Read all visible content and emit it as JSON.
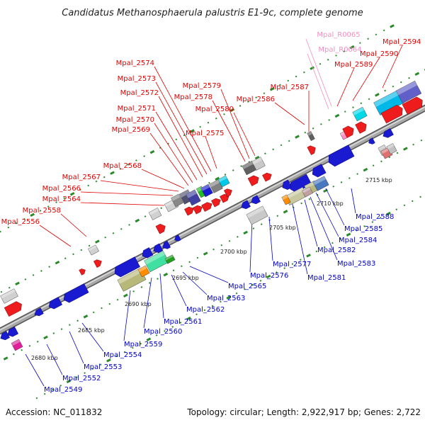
{
  "title": "Candidatus Methanosphaerula palustris E1-9c, complete genome",
  "footer": {
    "accession": "Accession: NC_011832",
    "topology": "Topology: circular; Length: 2,922,917 bp; Genes: 2,722"
  },
  "colors": {
    "forward_label": "#e00000",
    "reverse_label": "#0000c8",
    "rna_label": "#f090c0",
    "backbone": "#9a9a9a",
    "ticks": "#2a8a2a"
  },
  "scale_labels": [
    "2680 kbp",
    "2685 kbp",
    "2690 kbp",
    "2695 kbp",
    "2700 kbp",
    "2705 kbp",
    "2710 kbp",
    "2715 kbp"
  ],
  "forward_genes": [
    "Mpal_2556",
    "Mpal_2558",
    "Mpal_2564",
    "Mpal_2566",
    "Mpal_2567",
    "Mpal_2568",
    "Mpal_2569",
    "Mpal_2570",
    "Mpal_2571",
    "Mpal_2572",
    "Mpal_2573",
    "Mpal_2574",
    "Mpal_2575",
    "Mpal_2578",
    "Mpal_2579",
    "Mpal_2580",
    "Mpal_2586",
    "Mpal_2587",
    "Mpal_2589",
    "Mpal_2590",
    "Mpal_2594"
  ],
  "rna_genes": [
    "Mpal_R0065",
    "Mpal_R0064"
  ],
  "reverse_genes": [
    "Mpal_2549",
    "Mpal_2552",
    "Mpal_2553",
    "Mpal_2554",
    "Mpal_2559",
    "Mpal_2560",
    "Mpal_2561",
    "Mpal_2562",
    "Mpal_2563",
    "Mpal_2565",
    "Mpal_2576",
    "Mpal_2577",
    "Mpal_2581",
    "Mpal_2582",
    "Mpal_2583",
    "Mpal_2584",
    "Mpal_2585",
    "Mpal_2588"
  ]
}
